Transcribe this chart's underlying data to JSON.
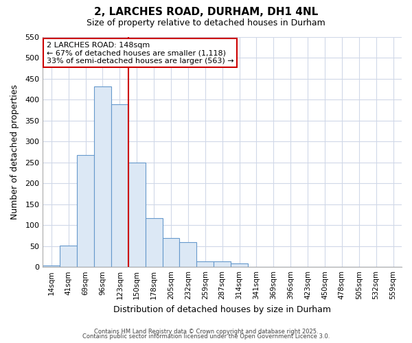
{
  "title": "2, LARCHES ROAD, DURHAM, DH1 4NL",
  "subtitle": "Size of property relative to detached houses in Durham",
  "xlabel": "Distribution of detached houses by size in Durham",
  "ylabel": "Number of detached properties",
  "bar_color": "#dce8f5",
  "bar_edge_color": "#6699cc",
  "bg_color": "#ffffff",
  "grid_color": "#d0d8e8",
  "categories": [
    "14sqm",
    "41sqm",
    "69sqm",
    "96sqm",
    "123sqm",
    "150sqm",
    "178sqm",
    "205sqm",
    "232sqm",
    "259sqm",
    "287sqm",
    "314sqm",
    "341sqm",
    "369sqm",
    "396sqm",
    "423sqm",
    "450sqm",
    "478sqm",
    "505sqm",
    "532sqm",
    "559sqm"
  ],
  "values": [
    3,
    51,
    267,
    432,
    390,
    250,
    116,
    70,
    60,
    13,
    14,
    8,
    0,
    0,
    0,
    0,
    0,
    0,
    0,
    0,
    0
  ],
  "ylim": [
    0,
    550
  ],
  "yticks": [
    0,
    50,
    100,
    150,
    200,
    250,
    300,
    350,
    400,
    450,
    500,
    550
  ],
  "property_label": "2 LARCHES ROAD: 148sqm",
  "pct_smaller": "67% of detached houses are smaller (1,118)",
  "pct_larger": "33% of semi-detached houses are larger (563)",
  "vline_bin_index": 5,
  "annotation_box_color": "#cc0000",
  "vline_color": "#cc0000",
  "footer_line1": "Contains HM Land Registry data © Crown copyright and database right 2025.",
  "footer_line2": "Contains public sector information licensed under the Open Government Licence 3.0."
}
